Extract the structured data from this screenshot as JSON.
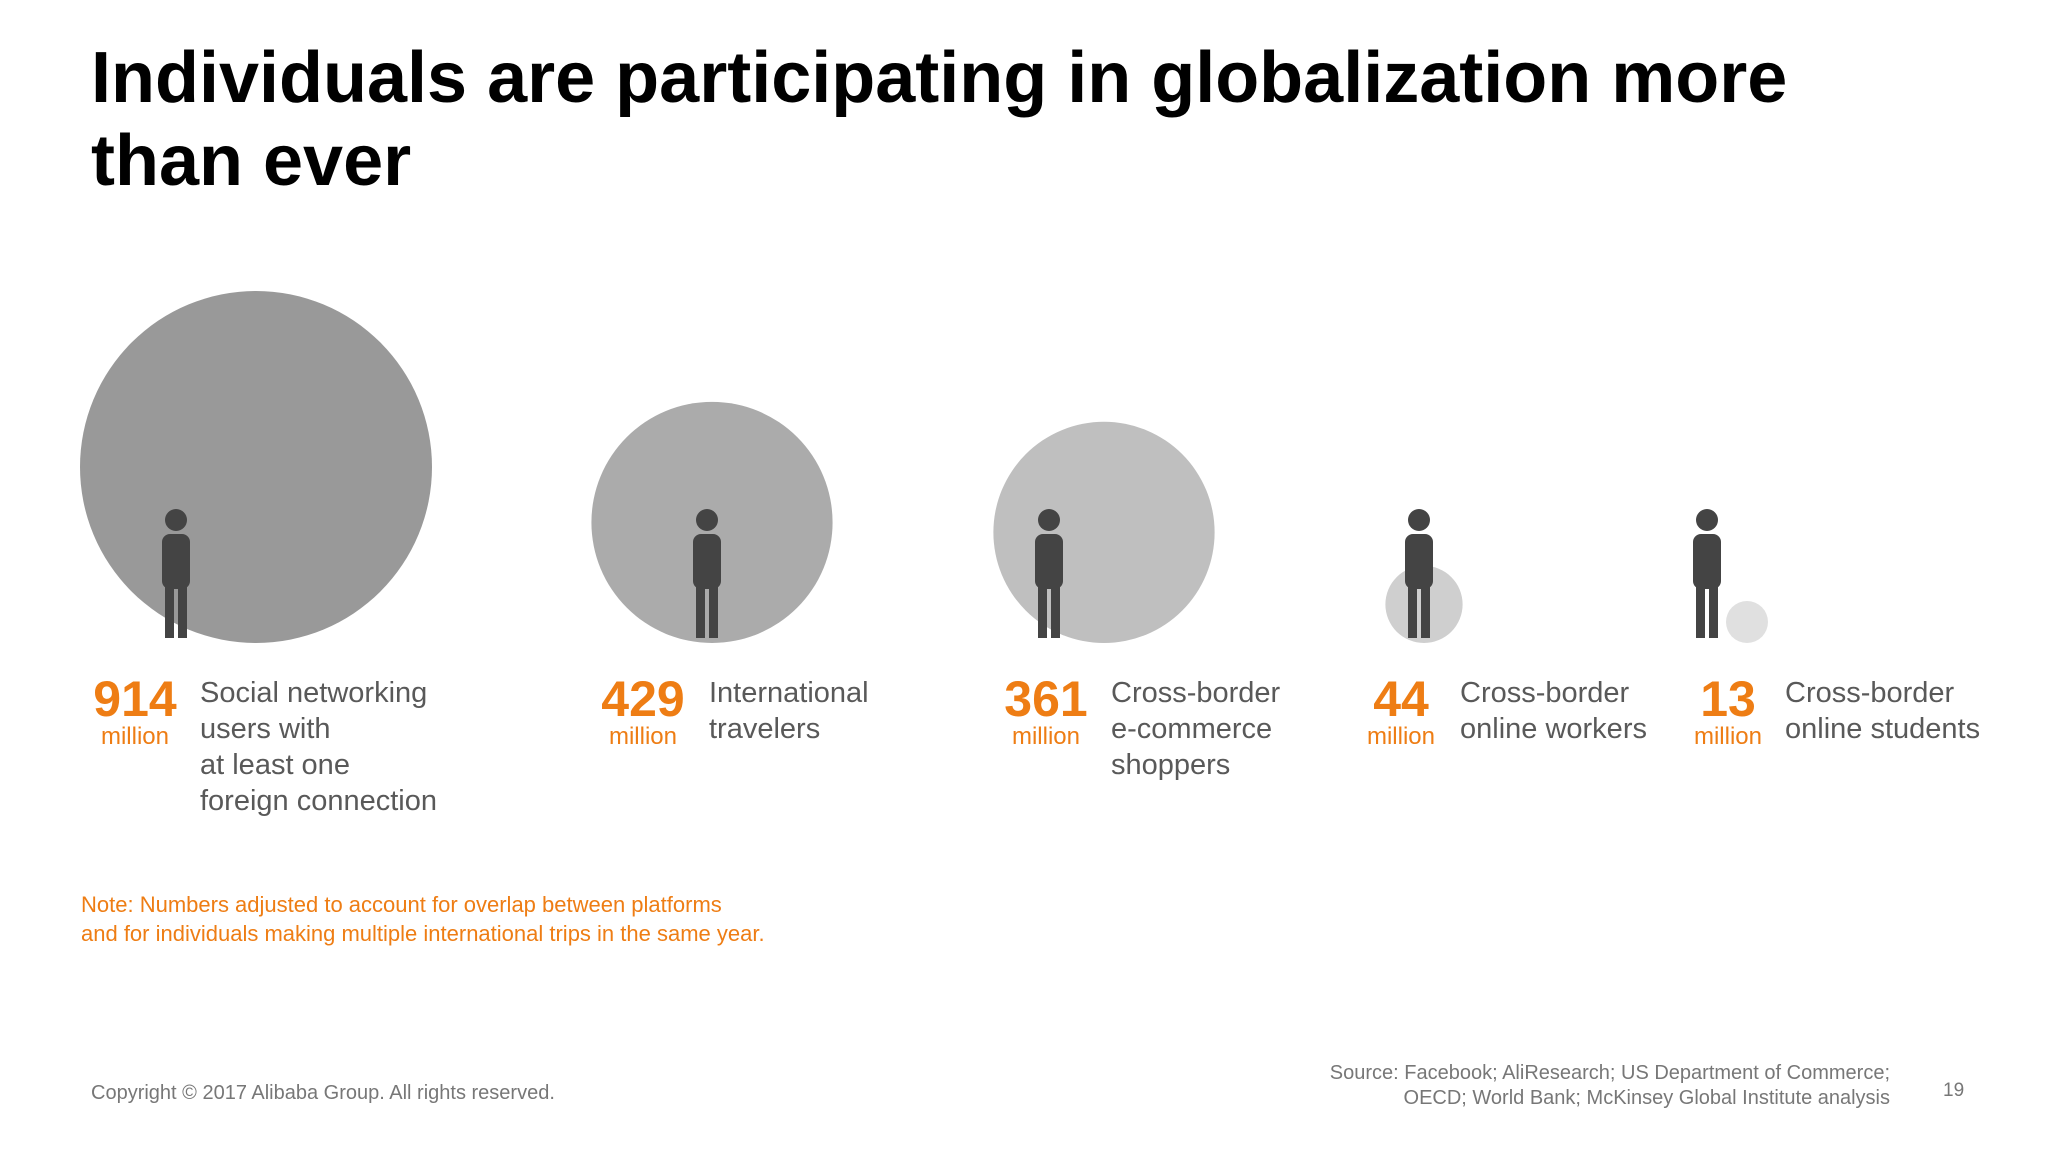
{
  "chart_data": {
    "type": "bubble",
    "title": [
      "Individuals are participating in globalization more",
      "than ever"
    ],
    "categories": [
      [
        "Social networking",
        "users with",
        "at least one",
        "foreign connection"
      ],
      [
        "International",
        "travelers"
      ],
      [
        "Cross-border",
        "e-commerce",
        "shoppers"
      ],
      [
        "Cross-border",
        "online workers"
      ],
      [
        "Cross-border",
        "online students"
      ]
    ],
    "values": [
      914,
      429,
      361,
      44,
      13
    ],
    "unit": "million",
    "colors": [
      "#999999",
      "#ababab",
      "#bfbfbf",
      "#cfcfcf",
      "#e0e0e0"
    ],
    "value_color": "#ee7d14",
    "note": [
      "Note: Numbers adjusted to account for overlap between platforms",
      "and for individuals making multiple international trips in the same year."
    ],
    "source": [
      "Source: Facebook; AliResearch; US Department of Commerce;",
      "OECD; World Bank; McKinsey Global Institute analysis"
    ],
    "copyright": "Copyright © 2017 Alibaba Group. All rights reserved.",
    "page_number": "19"
  }
}
